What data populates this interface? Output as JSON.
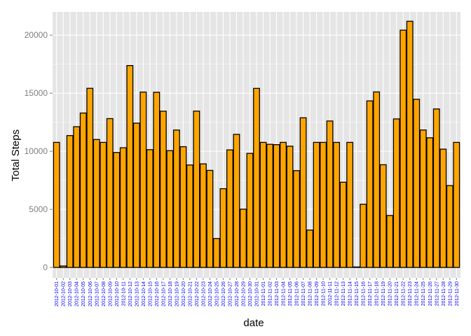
{
  "chart_data": {
    "type": "bar",
    "title": "",
    "xlabel": "date",
    "ylabel": "Total Steps",
    "ylim": [
      -900,
      22000
    ],
    "yticks": [
      "0",
      "5000",
      "10000",
      "15000",
      "20000"
    ],
    "ytick_values": [
      0,
      5000,
      10000,
      15000,
      20000
    ],
    "grid": true,
    "legend": "none",
    "colors": {
      "panel": "#e5e5e5",
      "grid": "#ffffff",
      "bar_fill": "#ffa500",
      "bar_stroke": "#000000"
    },
    "categories": [
      "2012-10-01",
      "2012-10-02",
      "2012-10-03",
      "2012-10-04",
      "2012-10-05",
      "2012-10-06",
      "2012-10-07",
      "2012-10-08",
      "2012-10-09",
      "2012-10-10",
      "2012-10-11",
      "2012-10-12",
      "2012-10-13",
      "2012-10-14",
      "2012-10-15",
      "2012-10-16",
      "2012-10-17",
      "2012-10-18",
      "2012-10-19",
      "2012-10-20",
      "2012-10-21",
      "2012-10-22",
      "2012-10-23",
      "2012-10-24",
      "2012-10-25",
      "2012-10-26",
      "2012-10-27",
      "2012-10-28",
      "2012-10-29",
      "2012-10-30",
      "2012-10-31",
      "2012-11-01",
      "2012-11-02",
      "2012-11-03",
      "2012-11-04",
      "2012-11-05",
      "2012-11-06",
      "2012-11-07",
      "2012-11-08",
      "2012-11-09",
      "2012-11-10",
      "2012-11-11",
      "2012-11-12",
      "2012-11-13",
      "2012-11-14",
      "2012-11-15",
      "2012-11-16",
      "2012-11-17",
      "2012-11-18",
      "2012-11-19",
      "2012-11-20",
      "2012-11-21",
      "2012-11-22",
      "2012-11-23",
      "2012-11-24",
      "2012-11-25",
      "2012-11-26",
      "2012-11-27",
      "2012-11-28",
      "2012-11-29",
      "2012-11-30"
    ],
    "values": [
      10766,
      126,
      11352,
      12116,
      13294,
      15420,
      11015,
      10766,
      12811,
      9900,
      10304,
      17382,
      12426,
      15098,
      10139,
      15084,
      13452,
      10056,
      11829,
      10395,
      8821,
      13460,
      8918,
      8355,
      2492,
      6778,
      10119,
      11458,
      5018,
      9819,
      15414,
      10766,
      10600,
      10571,
      10766,
      10439,
      8334,
      12883,
      3219,
      10766,
      10766,
      12608,
      10765,
      7336,
      10766,
      41,
      5441,
      14339,
      15110,
      8841,
      4472,
      12787,
      20427,
      21194,
      14478,
      11834,
      11162,
      13646,
      10183,
      7047,
      10766
    ]
  }
}
